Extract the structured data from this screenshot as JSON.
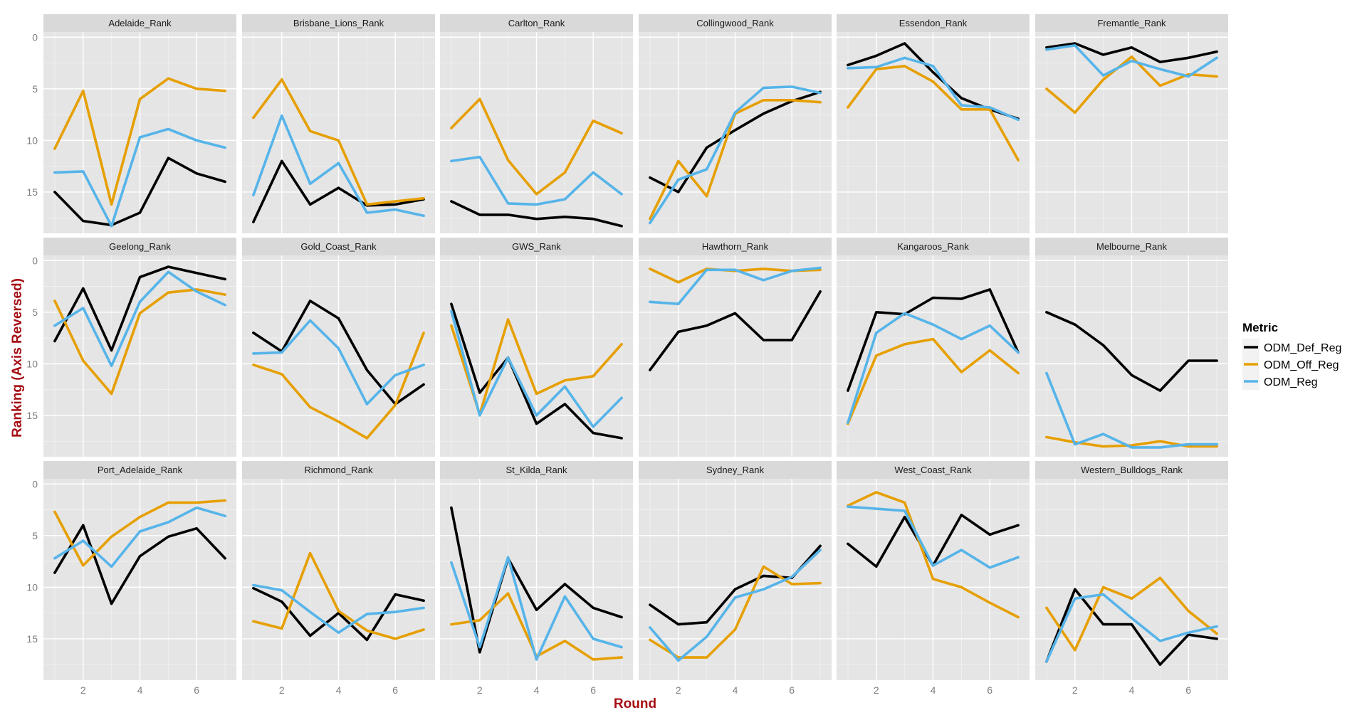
{
  "chart_data": {
    "type": "line",
    "xlabel": "Round",
    "ylabel": "Ranking (Axis Reversed)",
    "ylim": [
      19,
      -0.5
    ],
    "y_reversed": true,
    "xlim": [
      0.6,
      7.4
    ],
    "xticks": [
      2,
      4,
      6
    ],
    "yticks": [
      0,
      5,
      10,
      15
    ],
    "grid": true,
    "legend": {
      "title": "Metric",
      "position": "right"
    },
    "series_colors": {
      "ODM_Def_Reg": "#000000",
      "ODM_Off_Reg": "#E69F00",
      "ODM_Reg": "#56B4E9"
    },
    "x": [
      1,
      2,
      3,
      4,
      5,
      6,
      7
    ],
    "facets": [
      {
        "title": "Adelaide_Rank",
        "series": [
          {
            "name": "ODM_Def_Reg",
            "values": [
              15,
              17.8,
              18.2,
              17,
              11.7,
              13.2,
              14
            ]
          },
          {
            "name": "ODM_Off_Reg",
            "values": [
              10.8,
              5.2,
              16.2,
              6,
              4,
              5,
              5.2
            ]
          },
          {
            "name": "ODM_Reg",
            "values": [
              13.1,
              13,
              18.3,
              9.7,
              8.9,
              10,
              10.7
            ]
          }
        ]
      },
      {
        "title": "Brisbane_Lions_Rank",
        "series": [
          {
            "name": "ODM_Def_Reg",
            "values": [
              17.9,
              12,
              16.2,
              14.6,
              16.3,
              16.2,
              15.7
            ]
          },
          {
            "name": "ODM_Off_Reg",
            "values": [
              7.8,
              4.1,
              9.1,
              10,
              16.2,
              15.9,
              15.6
            ]
          },
          {
            "name": "ODM_Reg",
            "values": [
              15.3,
              7.6,
              14.2,
              12.2,
              17,
              16.7,
              17.3
            ]
          }
        ]
      },
      {
        "title": "Carlton_Rank",
        "series": [
          {
            "name": "ODM_Def_Reg",
            "values": [
              15.9,
              17.2,
              17.2,
              17.6,
              17.4,
              17.6,
              18.3
            ]
          },
          {
            "name": "ODM_Off_Reg",
            "values": [
              8.8,
              6,
              11.9,
              15.2,
              13.1,
              8.1,
              9.3
            ]
          },
          {
            "name": "ODM_Reg",
            "values": [
              12,
              11.6,
              16.1,
              16.2,
              15.7,
              13.1,
              15.2
            ]
          }
        ]
      },
      {
        "title": "Collingwood_Rank",
        "series": [
          {
            "name": "ODM_Def_Reg",
            "values": [
              13.6,
              15,
              10.7,
              9,
              7.4,
              6.2,
              5.3
            ]
          },
          {
            "name": "ODM_Off_Reg",
            "values": [
              17.6,
              12,
              15.4,
              7.4,
              6.1,
              6.1,
              6.3
            ]
          },
          {
            "name": "ODM_Reg",
            "values": [
              18,
              13.8,
              12.8,
              7.3,
              4.9,
              4.8,
              5.4
            ]
          }
        ]
      },
      {
        "title": "Essendon_Rank",
        "series": [
          {
            "name": "ODM_Def_Reg",
            "values": [
              2.7,
              1.8,
              0.6,
              3.4,
              5.9,
              7,
              7.9
            ]
          },
          {
            "name": "ODM_Off_Reg",
            "values": [
              6.8,
              3.1,
              2.8,
              4.3,
              7,
              7,
              11.9
            ]
          },
          {
            "name": "ODM_Reg",
            "values": [
              3,
              2.9,
              2,
              2.8,
              6.6,
              6.8,
              8
            ]
          }
        ]
      },
      {
        "title": "Fremantle_Rank",
        "series": [
          {
            "name": "ODM_Def_Reg",
            "values": [
              1,
              0.6,
              1.7,
              1,
              2.4,
              2,
              1.4
            ]
          },
          {
            "name": "ODM_Off_Reg",
            "values": [
              5,
              7.3,
              4.1,
              1.9,
              4.7,
              3.6,
              3.8
            ]
          },
          {
            "name": "ODM_Reg",
            "values": [
              1.2,
              0.8,
              3.7,
              2.3,
              3.1,
              3.8,
              2
            ]
          }
        ]
      },
      {
        "title": "Geelong_Rank",
        "series": [
          {
            "name": "ODM_Def_Reg",
            "values": [
              7.8,
              2.7,
              8.7,
              1.6,
              0.6,
              1.2,
              1.8
            ]
          },
          {
            "name": "ODM_Off_Reg",
            "values": [
              3.9,
              9.7,
              12.9,
              5.1,
              3.1,
              2.8,
              3.3
            ]
          },
          {
            "name": "ODM_Reg",
            "values": [
              6.3,
              4.6,
              10.2,
              4,
              1.1,
              3,
              4.3
            ]
          }
        ]
      },
      {
        "title": "Gold_Coast_Rank",
        "series": [
          {
            "name": "ODM_Def_Reg",
            "values": [
              7,
              8.8,
              3.9,
              5.6,
              10.6,
              13.9,
              12
            ]
          },
          {
            "name": "ODM_Off_Reg",
            "values": [
              10.1,
              11,
              14.2,
              15.6,
              17.2,
              14,
              7
            ]
          },
          {
            "name": "ODM_Reg",
            "values": [
              9,
              8.9,
              5.8,
              8.5,
              13.9,
              11.1,
              10.1
            ]
          }
        ]
      },
      {
        "title": "GWS_Rank",
        "series": [
          {
            "name": "ODM_Def_Reg",
            "values": [
              4.2,
              12.8,
              9.4,
              15.8,
              13.9,
              16.7,
              17.2
            ]
          },
          {
            "name": "ODM_Off_Reg",
            "values": [
              6.3,
              14.9,
              5.7,
              12.9,
              11.6,
              11.2,
              8.1
            ]
          },
          {
            "name": "ODM_Reg",
            "values": [
              4.9,
              15,
              9.4,
              15,
              12.2,
              16.1,
              13.3
            ]
          }
        ]
      },
      {
        "title": "Hawthorn_Rank",
        "series": [
          {
            "name": "ODM_Def_Reg",
            "values": [
              10.6,
              6.9,
              6.3,
              5.1,
              7.7,
              7.7,
              3
            ]
          },
          {
            "name": "ODM_Off_Reg",
            "values": [
              0.8,
              2.1,
              0.8,
              1,
              0.8,
              1,
              0.9
            ]
          },
          {
            "name": "ODM_Reg",
            "values": [
              4,
              4.2,
              0.9,
              0.9,
              1.9,
              1,
              0.7
            ]
          }
        ]
      },
      {
        "title": "Kangaroos_Rank",
        "series": [
          {
            "name": "ODM_Def_Reg",
            "values": [
              12.6,
              5,
              5.2,
              3.6,
              3.7,
              2.8,
              8.9
            ]
          },
          {
            "name": "ODM_Off_Reg",
            "values": [
              15.8,
              9.2,
              8.1,
              7.6,
              10.8,
              8.7,
              10.9
            ]
          },
          {
            "name": "ODM_Reg",
            "values": [
              15.7,
              7,
              5.1,
              6.2,
              7.6,
              6.3,
              8.9
            ]
          }
        ]
      },
      {
        "title": "Melbourne_Rank",
        "series": [
          {
            "name": "ODM_Def_Reg",
            "values": [
              5,
              6.2,
              8.2,
              11.1,
              12.6,
              9.7,
              9.7
            ]
          },
          {
            "name": "ODM_Off_Reg",
            "values": [
              17.1,
              17.6,
              18,
              17.9,
              17.5,
              18,
              18
            ]
          },
          {
            "name": "ODM_Reg",
            "values": [
              10.9,
              17.8,
              16.8,
              18.1,
              18.1,
              17.8,
              17.8
            ]
          }
        ]
      },
      {
        "title": "Port_Adelaide_Rank",
        "series": [
          {
            "name": "ODM_Def_Reg",
            "values": [
              8.6,
              4,
              11.6,
              7,
              5.1,
              4.3,
              7.2
            ]
          },
          {
            "name": "ODM_Off_Reg",
            "values": [
              2.7,
              7.9,
              5.1,
              3.2,
              1.8,
              1.8,
              1.6
            ]
          },
          {
            "name": "ODM_Reg",
            "values": [
              7.2,
              5.5,
              8,
              4.6,
              3.7,
              2.3,
              3.1
            ]
          }
        ]
      },
      {
        "title": "Richmond_Rank",
        "series": [
          {
            "name": "ODM_Def_Reg",
            "values": [
              10.1,
              11.4,
              14.7,
              12.5,
              15.1,
              10.7,
              11.3
            ]
          },
          {
            "name": "ODM_Off_Reg",
            "values": [
              13.3,
              14,
              6.7,
              12.3,
              14.2,
              15,
              14.1
            ]
          },
          {
            "name": "ODM_Reg",
            "values": [
              9.8,
              10.3,
              12.4,
              14.4,
              12.6,
              12.4,
              12
            ]
          }
        ]
      },
      {
        "title": "St_Kilda_Rank",
        "series": [
          {
            "name": "ODM_Def_Reg",
            "values": [
              2.3,
              16.3,
              7.2,
              12.2,
              9.7,
              12,
              12.9
            ]
          },
          {
            "name": "ODM_Off_Reg",
            "values": [
              13.6,
              13.2,
              10.6,
              16.7,
              15.2,
              17,
              16.8
            ]
          },
          {
            "name": "ODM_Reg",
            "values": [
              7.6,
              15.8,
              7.1,
              17,
              10.9,
              15,
              15.8
            ]
          }
        ]
      },
      {
        "title": "Sydney_Rank",
        "series": [
          {
            "name": "ODM_Def_Reg",
            "values": [
              11.7,
              13.6,
              13.4,
              10.2,
              8.9,
              9.1,
              6
            ]
          },
          {
            "name": "ODM_Off_Reg",
            "values": [
              15.1,
              16.8,
              16.8,
              14.1,
              8,
              9.7,
              9.6
            ]
          },
          {
            "name": "ODM_Reg",
            "values": [
              13.9,
              17.1,
              14.8,
              11,
              10.2,
              9,
              6.4
            ]
          }
        ]
      },
      {
        "title": "West_Coast_Rank",
        "series": [
          {
            "name": "ODM_Def_Reg",
            "values": [
              5.8,
              8,
              3.2,
              7.9,
              3,
              4.9,
              4
            ]
          },
          {
            "name": "ODM_Off_Reg",
            "values": [
              2.1,
              0.8,
              1.8,
              9.2,
              10,
              11.5,
              12.9
            ]
          },
          {
            "name": "ODM_Reg",
            "values": [
              2.2,
              2.4,
              2.6,
              7.9,
              6.4,
              8.1,
              7.1
            ]
          }
        ]
      },
      {
        "title": "Western_Bulldogs_Rank",
        "series": [
          {
            "name": "ODM_Def_Reg",
            "values": [
              17.2,
              10.2,
              13.6,
              13.6,
              17.5,
              14.6,
              15
            ]
          },
          {
            "name": "ODM_Off_Reg",
            "values": [
              12,
              16.1,
              10,
              11.1,
              9.1,
              12.3,
              14.5
            ]
          },
          {
            "name": "ODM_Reg",
            "values": [
              17.2,
              11.1,
              10.7,
              13,
              15.2,
              14.4,
              13.8
            ]
          }
        ]
      }
    ]
  }
}
